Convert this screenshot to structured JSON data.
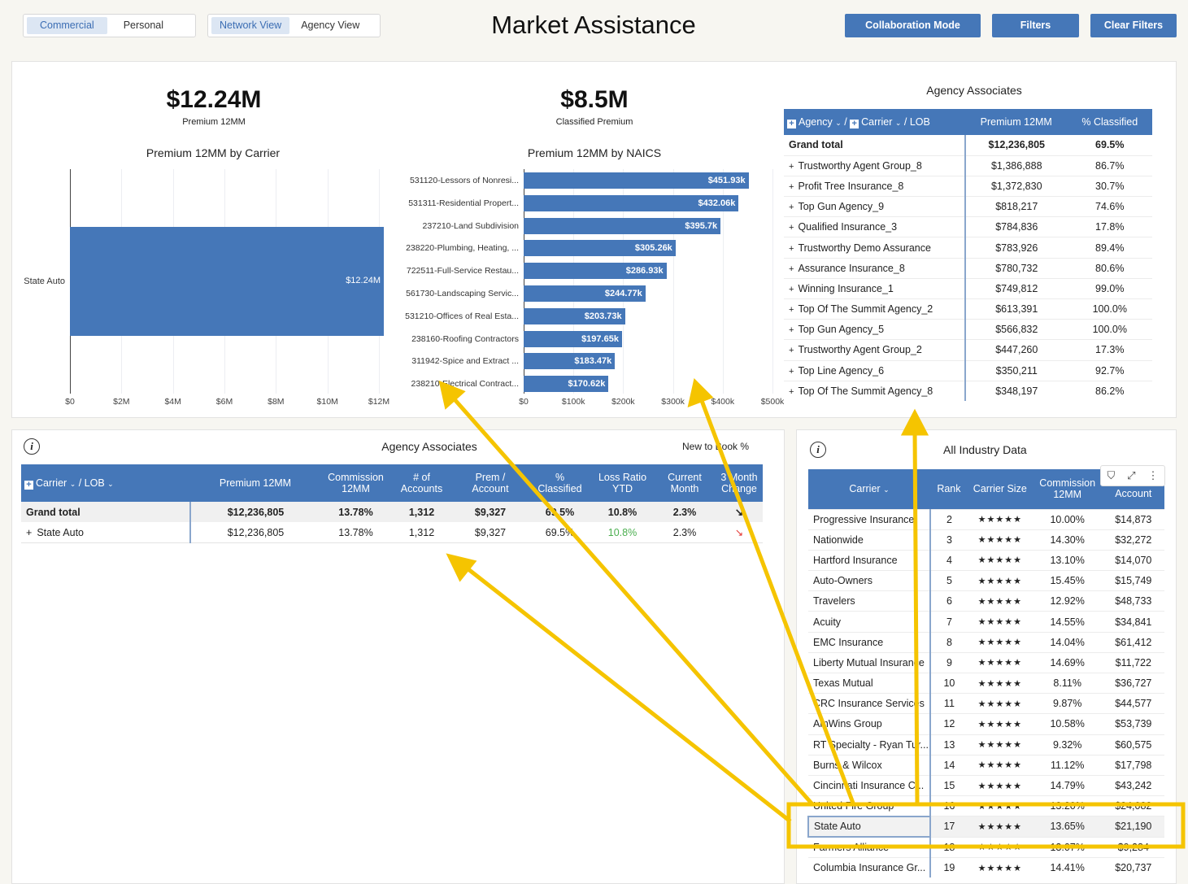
{
  "toggles": {
    "commercial": "Commercial",
    "personal": "Personal",
    "network": "Network View",
    "agency": "Agency View"
  },
  "title": "Market Assistance",
  "buttons": {
    "collab": "Collaboration Mode",
    "filters": "Filters",
    "clear": "Clear Filters"
  },
  "kpi1": {
    "value": "$12.24M",
    "label": "Premium 12MM"
  },
  "kpi2": {
    "value": "$8.5M",
    "label": "Classified Premium"
  },
  "carrier_chart": {
    "title": "Premium 12MM by Carrier",
    "category": "State Auto",
    "bar_label": "$12.24M",
    "value": 12.24,
    "max": 12,
    "ticks": [
      "$0",
      "$2M",
      "$4M",
      "$6M",
      "$8M",
      "$10M",
      "$12M"
    ]
  },
  "chart_data": [
    {
      "type": "bar",
      "title": "Premium 12MM by Carrier",
      "categories": [
        "State Auto"
      ],
      "values": [
        12.24
      ],
      "xlim": [
        0,
        12.3
      ],
      "units": "$M",
      "orientation": "horizontal"
    },
    {
      "type": "bar",
      "title": "Premium 12MM by NAICS",
      "orientation": "horizontal",
      "categories": [
        "531120-Lessors of Nonresi...",
        "531311-Residential Propert...",
        "237210-Land Subdivision",
        "238220-Plumbing, Heating, ...",
        "722511-Full-Service Restau...",
        "561730-Landscaping Servic...",
        "531210-Offices of Real Esta...",
        "238160-Roofing Contractors",
        "311942-Spice and Extract ...",
        "238210-Electrical Contract..."
      ],
      "values": [
        451.93,
        432.06,
        395.7,
        305.26,
        286.93,
        244.77,
        203.73,
        197.65,
        183.47,
        170.62
      ],
      "labels": [
        "$451.93k",
        "$432.06k",
        "$395.7k",
        "$305.26k",
        "$286.93k",
        "$244.77k",
        "$203.73k",
        "$197.65k",
        "$183.47k",
        "$170.62k"
      ],
      "ticks": [
        "$0",
        "$100k",
        "$200k",
        "$300k",
        "$400k",
        "$500k"
      ],
      "xlim": [
        0,
        500
      ],
      "units": "$k"
    }
  ],
  "agency_panel": {
    "title": "Agency Associates",
    "h_agency": "Agency",
    "h_carrier": "Carrier",
    "h_lob": "LOB",
    "h_premium": "Premium 12MM",
    "h_class": "% Classified",
    "total": {
      "name": "Grand total",
      "premium": "$12,236,805",
      "pct": "69.5%"
    },
    "rows": [
      {
        "name": "Trustworthy Agent Group_8",
        "premium": "$1,386,888",
        "pct": "86.7%"
      },
      {
        "name": "Profit Tree Insurance_8",
        "premium": "$1,372,830",
        "pct": "30.7%"
      },
      {
        "name": "Top Gun Agency_9",
        "premium": "$818,217",
        "pct": "74.6%"
      },
      {
        "name": "Qualified Insurance_3",
        "premium": "$784,836",
        "pct": "17.8%"
      },
      {
        "name": "Trustworthy Demo Assurance",
        "premium": "$783,926",
        "pct": "89.4%"
      },
      {
        "name": "Assurance Insurance_8",
        "premium": "$780,732",
        "pct": "80.6%"
      },
      {
        "name": "Winning Insurance_1",
        "premium": "$749,812",
        "pct": "99.0%"
      },
      {
        "name": "Top Of The Summit Agency_2",
        "premium": "$613,391",
        "pct": "100.0%"
      },
      {
        "name": "Top Gun Agency_5",
        "premium": "$566,832",
        "pct": "100.0%"
      },
      {
        "name": "Trustworthy Agent Group_2",
        "premium": "$447,260",
        "pct": "17.3%"
      },
      {
        "name": "Top Line Agency_6",
        "premium": "$350,211",
        "pct": "92.7%"
      },
      {
        "name": "Top Of The Summit Agency_8",
        "premium": "$348,197",
        "pct": "86.2%"
      }
    ]
  },
  "bottom_left": {
    "title": "Agency Associates",
    "nb": "New to Book %",
    "headers": [
      "Carrier",
      "LOB",
      "Premium 12MM",
      "Commission 12MM",
      "# of Accounts",
      "Prem / Account",
      "% Classified",
      "Loss Ratio YTD",
      "Current Month",
      "3 Month Change"
    ],
    "total": [
      "Grand total",
      "$12,236,805",
      "13.78%",
      "1,312",
      "$9,327",
      "69.5%",
      "10.8%",
      "2.3%",
      "↘"
    ],
    "row": [
      "State Auto",
      "$12,236,805",
      "13.78%",
      "1,312",
      "$9,327",
      "69.5%",
      "10.8%",
      "2.3%",
      "↘"
    ]
  },
  "industry": {
    "title": "All Industry Data",
    "h_carrier": "Carrier",
    "h_rank": "Rank",
    "h_size": "Carrier Size",
    "h_comm": "Commission 12MM",
    "h_acct": "Account",
    "stars": "★★★★★",
    "rows": [
      {
        "carrier": "Progressive Insurance",
        "rank": "2",
        "comm": "10.00%",
        "acct": "$14,873"
      },
      {
        "carrier": "Nationwide",
        "rank": "3",
        "comm": "14.30%",
        "acct": "$32,272"
      },
      {
        "carrier": "Hartford Insurance",
        "rank": "4",
        "comm": "13.10%",
        "acct": "$14,070"
      },
      {
        "carrier": "Auto-Owners",
        "rank": "5",
        "comm": "15.45%",
        "acct": "$15,749"
      },
      {
        "carrier": "Travelers",
        "rank": "6",
        "comm": "12.92%",
        "acct": "$48,733"
      },
      {
        "carrier": "Acuity",
        "rank": "7",
        "comm": "14.55%",
        "acct": "$34,841"
      },
      {
        "carrier": "EMC Insurance",
        "rank": "8",
        "comm": "14.04%",
        "acct": "$61,412"
      },
      {
        "carrier": "Liberty Mutual Insurance",
        "rank": "9",
        "comm": "14.69%",
        "acct": "$11,722"
      },
      {
        "carrier": "Texas Mutual",
        "rank": "10",
        "comm": "8.11%",
        "acct": "$36,727"
      },
      {
        "carrier": "CRC Insurance Services",
        "rank": "11",
        "comm": "9.87%",
        "acct": "$44,577"
      },
      {
        "carrier": "AmWins Group",
        "rank": "12",
        "comm": "10.58%",
        "acct": "$53,739"
      },
      {
        "carrier": "RT Specialty - Ryan Tur...",
        "rank": "13",
        "comm": "9.32%",
        "acct": "$60,575"
      },
      {
        "carrier": "Burns & Wilcox",
        "rank": "14",
        "comm": "11.12%",
        "acct": "$17,798"
      },
      {
        "carrier": "Cincinnati Insurance C...",
        "rank": "15",
        "comm": "14.79%",
        "acct": "$43,242"
      },
      {
        "carrier": "United Fire Group",
        "rank": "16",
        "comm": "13.20%",
        "acct": "$24,082"
      },
      {
        "carrier": "State Auto",
        "rank": "17",
        "comm": "13.65%",
        "acct": "$21,190"
      },
      {
        "carrier": "Farmers Alliance",
        "rank": "18",
        "comm": "13.07%",
        "acct": "$9,284"
      },
      {
        "carrier": "Columbia Insurance Gr...",
        "rank": "19",
        "comm": "14.41%",
        "acct": "$20,737"
      }
    ]
  },
  "colors": {
    "accent": "#4577b8",
    "highlight": "#f5c400",
    "arrow": "#f5c400",
    "up": "#4caf50",
    "down": "#e53935"
  }
}
